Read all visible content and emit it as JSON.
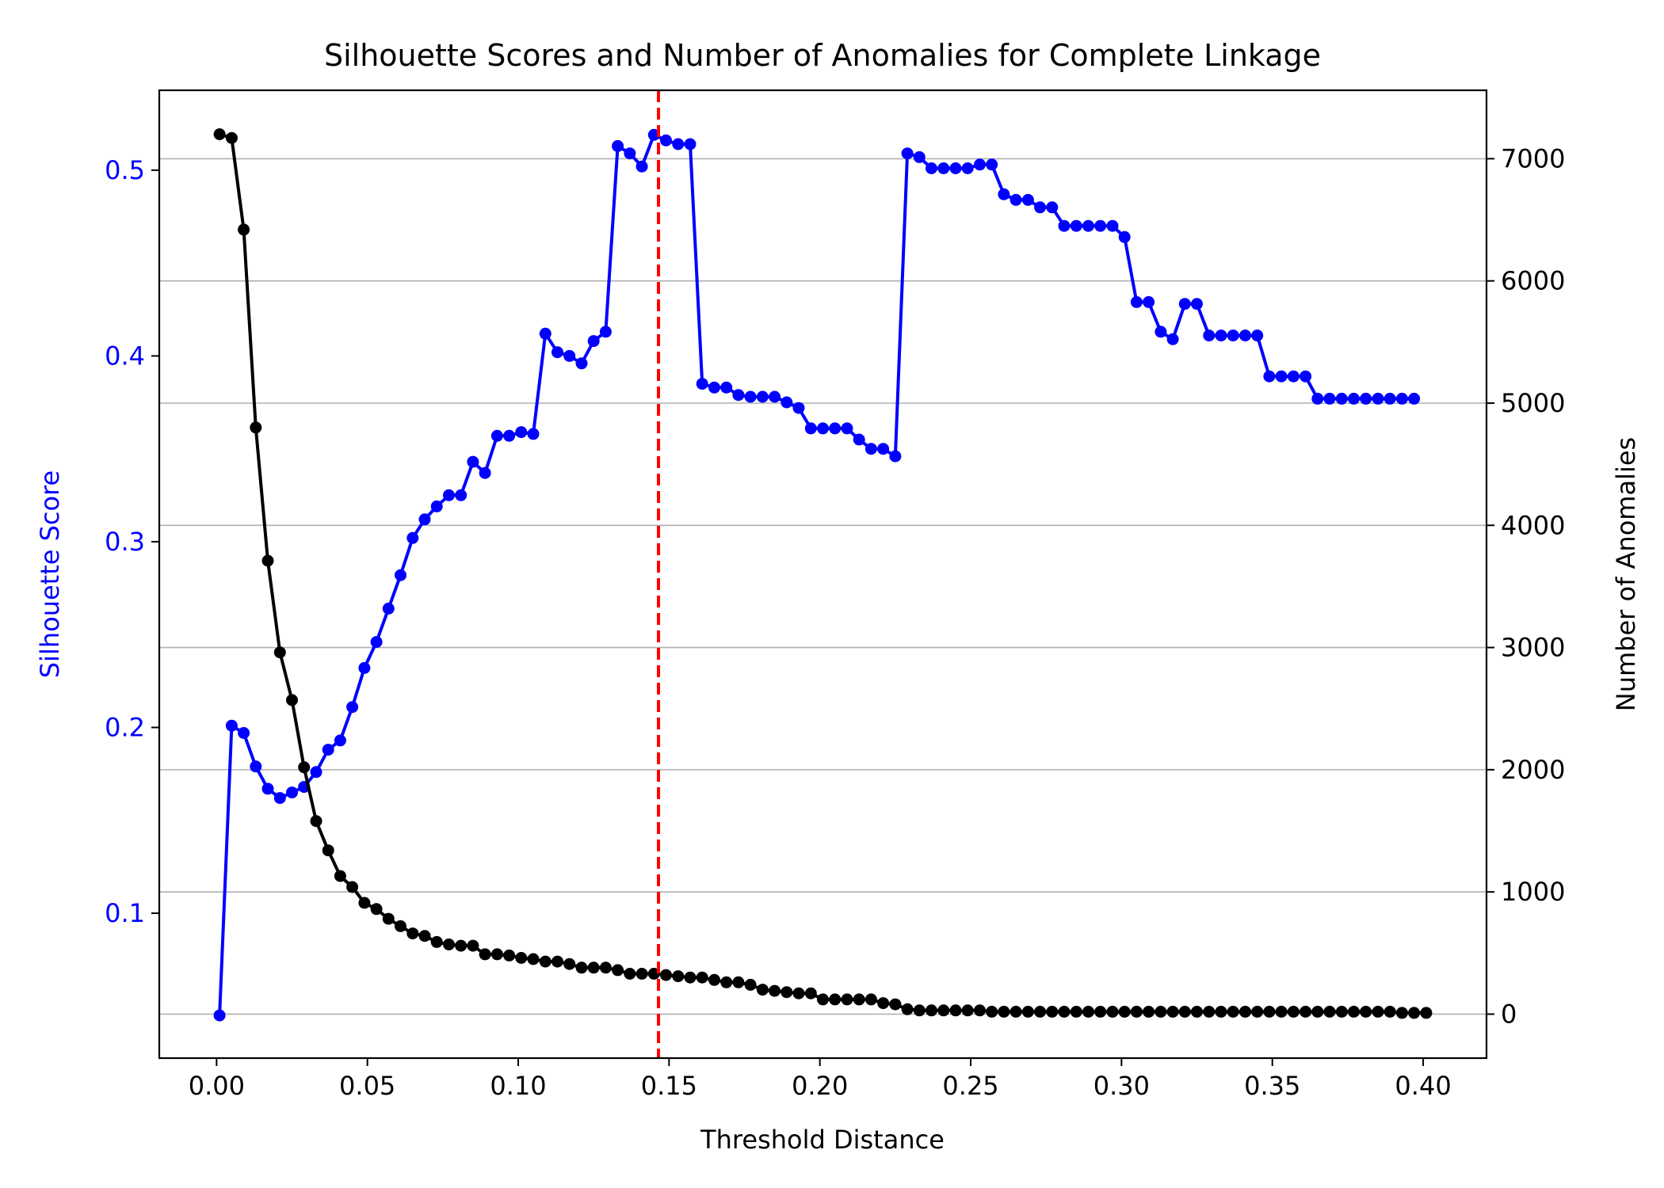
{
  "chart_data": {
    "type": "line",
    "title": "Silhouette Scores and Number of Anomalies for Complete Linkage",
    "xlabel": "Threshold Distance",
    "y_left_label": "Silhouette Score",
    "y_right_label": "Number of Anomalies",
    "xlim": [
      -0.019,
      0.421
    ],
    "x_ticks": [
      0.0,
      0.05,
      0.1,
      0.15,
      0.2,
      0.25,
      0.3,
      0.35,
      0.4
    ],
    "x_tick_labels": [
      "0.00",
      "0.05",
      "0.10",
      "0.15",
      "0.20",
      "0.25",
      "0.30",
      "0.35",
      "0.40"
    ],
    "y_left_lim": [
      0.022,
      0.543
    ],
    "y_left_ticks": [
      0.1,
      0.2,
      0.3,
      0.4,
      0.5
    ],
    "y_left_tick_labels": [
      "0.1",
      "0.2",
      "0.3",
      "0.4",
      "0.5"
    ],
    "y_right_lim": [
      -360,
      7560
    ],
    "y_right_ticks": [
      0,
      1000,
      2000,
      3000,
      4000,
      5000,
      6000,
      7000
    ],
    "y_right_tick_labels": [
      "0",
      "1000",
      "2000",
      "3000",
      "4000",
      "5000",
      "6000",
      "7000"
    ],
    "grid": "horizontal, right axis",
    "threshold_line": 0.1465,
    "colors": {
      "silhouette": "#0000ff",
      "anomalies": "#000000",
      "threshold": "#ff0000",
      "grid": "#b0b0b0",
      "left_axis_text": "#0000ff"
    },
    "series": [
      {
        "axis": "left",
        "x": [
          0.001,
          0.005,
          0.009,
          0.013,
          0.017,
          0.021,
          0.025,
          0.029,
          0.033,
          0.037,
          0.041,
          0.045,
          0.049,
          0.053,
          0.057,
          0.061,
          0.065,
          0.069,
          0.073,
          0.077,
          0.081,
          0.085,
          0.089,
          0.093,
          0.097,
          0.101,
          0.105,
          0.109,
          0.113,
          0.117,
          0.121,
          0.125,
          0.129,
          0.133,
          0.137,
          0.141,
          0.145,
          0.149,
          0.153,
          0.157,
          0.161,
          0.165,
          0.169,
          0.173,
          0.177,
          0.181,
          0.185,
          0.189,
          0.193,
          0.197,
          0.201,
          0.205,
          0.209,
          0.213,
          0.217,
          0.221,
          0.225,
          0.229,
          0.233,
          0.237,
          0.241,
          0.245,
          0.249,
          0.253,
          0.257,
          0.261,
          0.265,
          0.269,
          0.273,
          0.277,
          0.281,
          0.285,
          0.289,
          0.293,
          0.297,
          0.301,
          0.305,
          0.309,
          0.313,
          0.317,
          0.321,
          0.325,
          0.329,
          0.333,
          0.337,
          0.341,
          0.345,
          0.349,
          0.353,
          0.357,
          0.361,
          0.365,
          0.369,
          0.373,
          0.377,
          0.381,
          0.385,
          0.389,
          0.393,
          0.397
        ],
        "y": [
          0.045,
          0.201,
          0.197,
          0.179,
          0.167,
          0.162,
          0.165,
          0.168,
          0.176,
          0.188,
          0.193,
          0.211,
          0.232,
          0.246,
          0.264,
          0.282,
          0.302,
          0.312,
          0.319,
          0.325,
          0.325,
          0.343,
          0.337,
          0.357,
          0.357,
          0.359,
          0.358,
          0.412,
          0.402,
          0.4,
          0.396,
          0.408,
          0.413,
          0.513,
          0.509,
          0.502,
          0.519,
          0.516,
          0.514,
          0.514,
          0.385,
          0.383,
          0.383,
          0.379,
          0.378,
          0.378,
          0.378,
          0.375,
          0.372,
          0.361,
          0.361,
          0.361,
          0.361,
          0.355,
          0.35,
          0.35,
          0.346,
          0.509,
          0.507,
          0.501,
          0.501,
          0.501,
          0.501,
          0.503,
          0.503,
          0.487,
          0.484,
          0.484,
          0.48,
          0.48,
          0.47,
          0.47,
          0.47,
          0.47,
          0.47,
          0.464,
          0.429,
          0.429,
          0.413,
          0.409,
          0.428,
          0.428,
          0.411,
          0.411,
          0.411,
          0.411,
          0.411,
          0.389,
          0.389,
          0.389,
          0.389,
          0.377,
          0.377,
          0.377,
          0.377,
          0.377,
          0.377,
          0.377,
          0.377,
          0.377
        ]
      },
      {
        "axis": "right",
        "x": [
          0.001,
          0.005,
          0.009,
          0.013,
          0.017,
          0.021,
          0.025,
          0.029,
          0.033,
          0.037,
          0.041,
          0.045,
          0.049,
          0.053,
          0.057,
          0.061,
          0.065,
          0.069,
          0.073,
          0.077,
          0.081,
          0.085,
          0.089,
          0.093,
          0.097,
          0.101,
          0.105,
          0.109,
          0.113,
          0.117,
          0.121,
          0.125,
          0.129,
          0.133,
          0.137,
          0.141,
          0.145,
          0.149,
          0.153,
          0.157,
          0.161,
          0.165,
          0.169,
          0.173,
          0.177,
          0.181,
          0.185,
          0.189,
          0.193,
          0.197,
          0.201,
          0.205,
          0.209,
          0.213,
          0.217,
          0.221,
          0.225,
          0.229,
          0.233,
          0.237,
          0.241,
          0.245,
          0.249,
          0.253,
          0.257,
          0.261,
          0.265,
          0.269,
          0.273,
          0.277,
          0.281,
          0.285,
          0.289,
          0.293,
          0.297,
          0.301,
          0.305,
          0.309,
          0.313,
          0.317,
          0.321,
          0.325,
          0.329,
          0.333,
          0.337,
          0.341,
          0.345,
          0.349,
          0.353,
          0.357,
          0.361,
          0.365,
          0.369,
          0.373,
          0.377,
          0.381,
          0.385,
          0.389,
          0.393,
          0.397,
          0.401
        ],
        "y": [
          7200,
          7170,
          6420,
          4800,
          3710,
          2960,
          2570,
          2020,
          1580,
          1340,
          1130,
          1040,
          910,
          860,
          780,
          720,
          660,
          640,
          590,
          570,
          560,
          560,
          490,
          490,
          480,
          460,
          450,
          430,
          430,
          410,
          380,
          380,
          380,
          360,
          330,
          330,
          330,
          320,
          310,
          300,
          300,
          280,
          260,
          260,
          240,
          200,
          190,
          180,
          170,
          170,
          120,
          120,
          120,
          120,
          120,
          90,
          80,
          40,
          30,
          30,
          30,
          30,
          30,
          30,
          20,
          20,
          20,
          20,
          20,
          20,
          20,
          20,
          20,
          20,
          20,
          20,
          20,
          20,
          20,
          20,
          20,
          20,
          20,
          20,
          20,
          20,
          20,
          20,
          20,
          20,
          20,
          20,
          20,
          20,
          20,
          20,
          20,
          20,
          10,
          10,
          10
        ]
      }
    ]
  }
}
